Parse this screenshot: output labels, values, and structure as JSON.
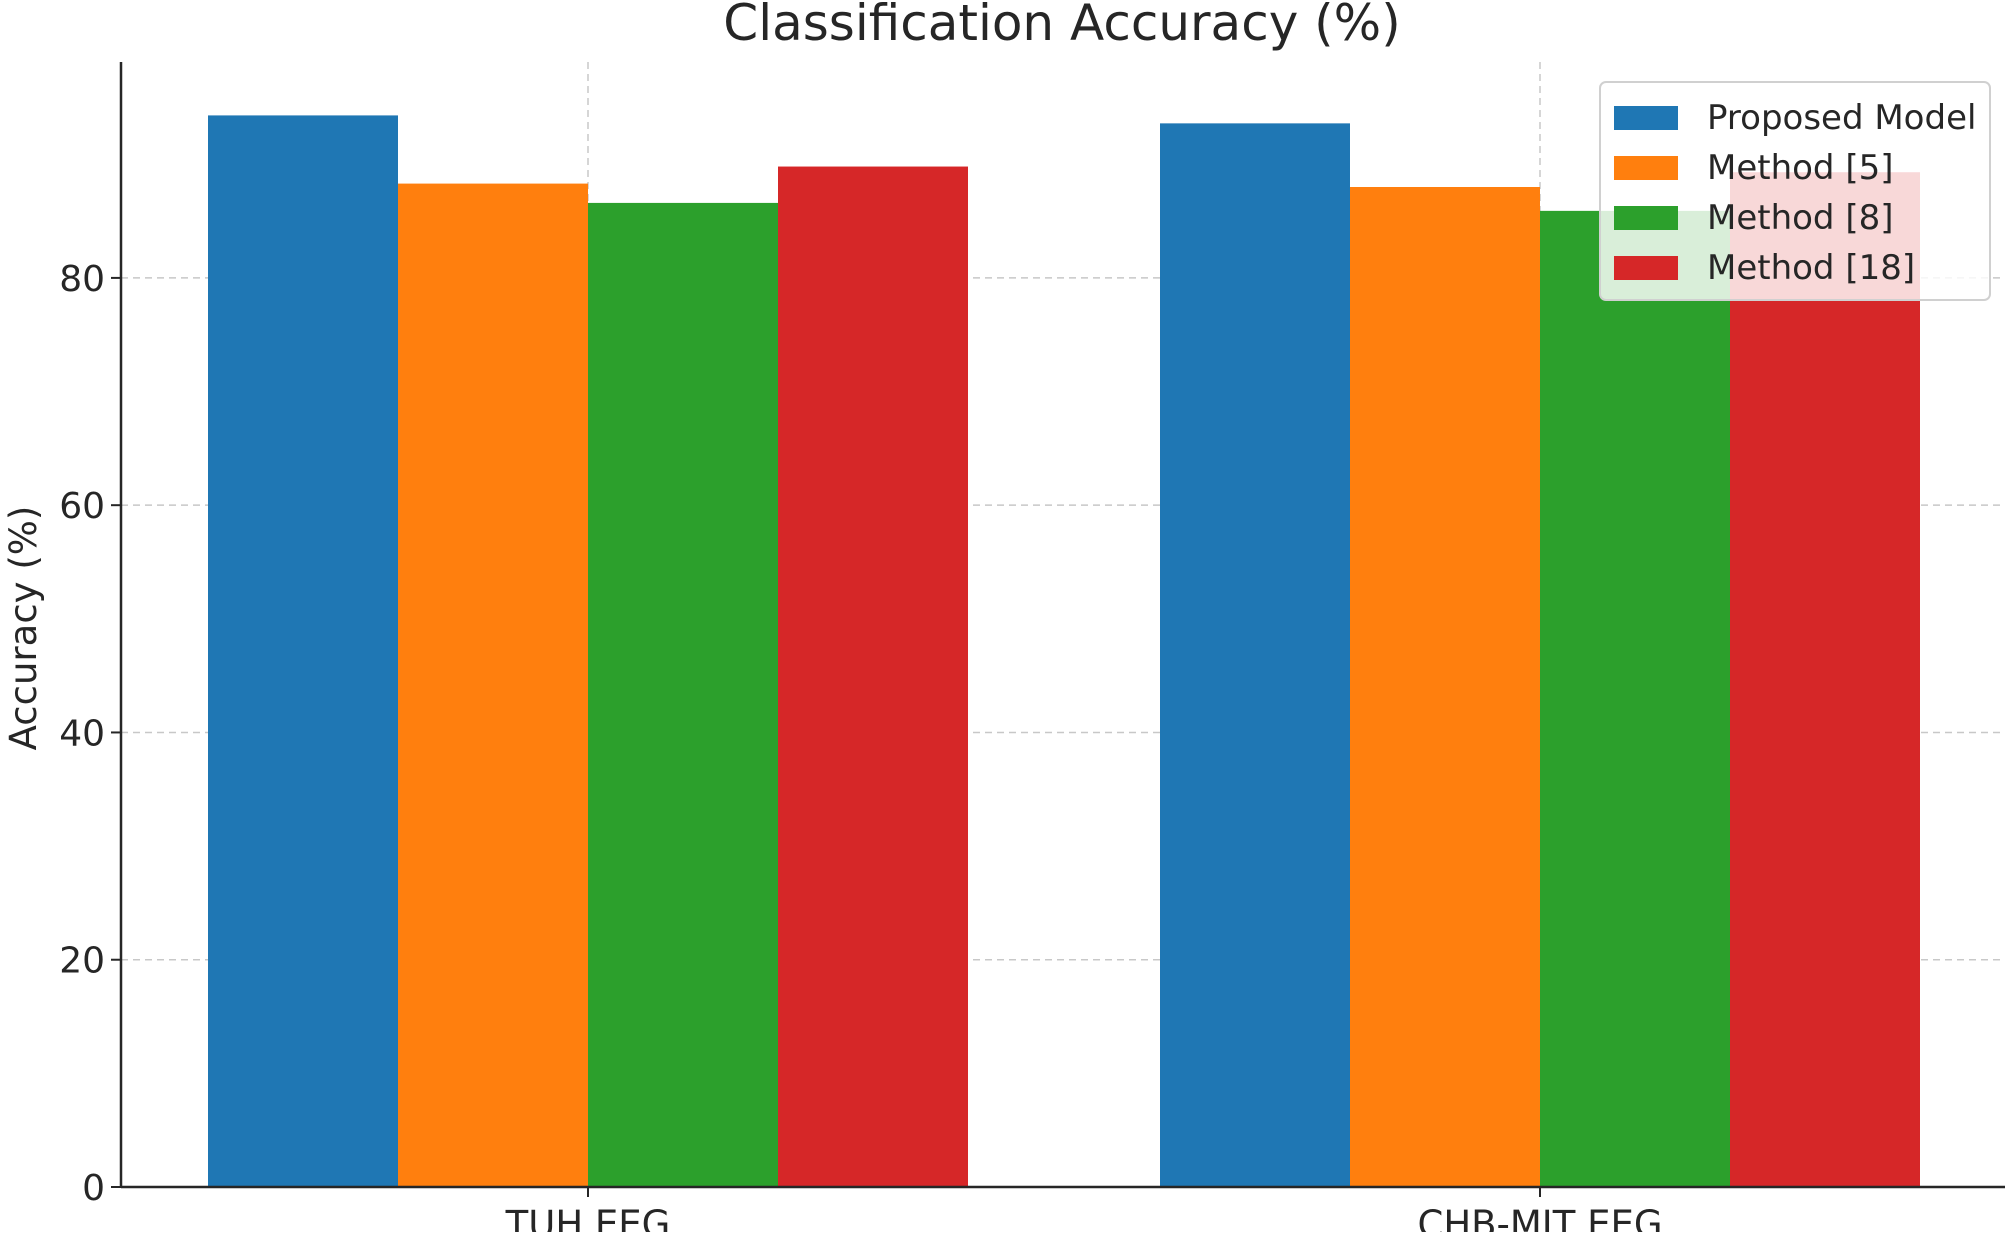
{
  "chart_data": {
    "type": "bar",
    "title": "Classification Accuracy (%)",
    "xlabel": "",
    "ylabel": "Accuracy (%)",
    "categories": [
      "TUH EEG",
      "CHB-MIT EEG"
    ],
    "series": [
      {
        "name": "Proposed Model",
        "color": "#1f77b4",
        "values": [
          94.3,
          93.6
        ]
      },
      {
        "name": "Method [5]",
        "color": "#ff7f0e",
        "values": [
          88.3,
          88.0
        ]
      },
      {
        "name": "Method [8]",
        "color": "#2ca02c",
        "values": [
          86.6,
          85.9
        ]
      },
      {
        "name": "Method [18]",
        "color": "#d62728",
        "values": [
          89.8,
          89.3
        ]
      }
    ],
    "ylim": [
      0,
      99
    ],
    "yticks": [
      0,
      20,
      40,
      60,
      80
    ],
    "grid": true,
    "legend_position": "top-right"
  }
}
